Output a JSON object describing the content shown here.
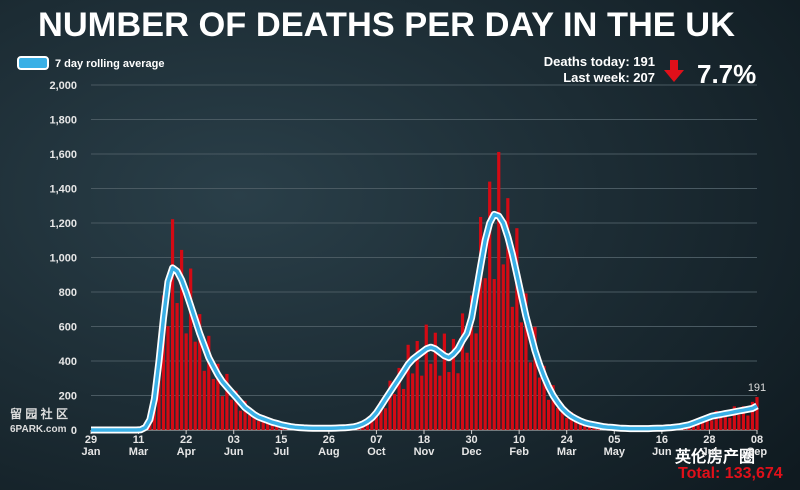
{
  "chart_data": {
    "type": "bar",
    "title": "NUMBER OF DEATHS PER DAY IN THE UK",
    "stats": {
      "today": "Deaths today: 191",
      "last_week": "Last week: 207",
      "change": "7.7%",
      "total": "Total: 133,674"
    },
    "watermarks": [
      "留 园 社 区",
      "6PARK.com",
      "英伦房产圈"
    ],
    "x": [
      0,
      4,
      8,
      12,
      16,
      20,
      24,
      28,
      32,
      36,
      40,
      44,
      48,
      52,
      56,
      60,
      64,
      68,
      72,
      76,
      80,
      84,
      88,
      92,
      96,
      100,
      104,
      108,
      112,
      116,
      120,
      124,
      128,
      132,
      136,
      140,
      144,
      148,
      152,
      156,
      160,
      164,
      168,
      172,
      176,
      180,
      184,
      188,
      192,
      196,
      200,
      204,
      208,
      212,
      216,
      220,
      224,
      228,
      232,
      236,
      240,
      244,
      248,
      252,
      256,
      260,
      264,
      268,
      272,
      276,
      280,
      284,
      288,
      292,
      296,
      300,
      304,
      308,
      312,
      316,
      320,
      324,
      328,
      332,
      336,
      340,
      344,
      348,
      352,
      356,
      360,
      364,
      368,
      372,
      376,
      380,
      384,
      388,
      392,
      396,
      400,
      404,
      408,
      412,
      416,
      420,
      424,
      428,
      432,
      436,
      440,
      444,
      448,
      452,
      456,
      460,
      464,
      468,
      472,
      476,
      480,
      484,
      488,
      492,
      496,
      500,
      504,
      508,
      512,
      516,
      520,
      524,
      528,
      532,
      536,
      540,
      544,
      548,
      552,
      556,
      560,
      564,
      568,
      572,
      576,
      580,
      584,
      588
    ],
    "series": [
      {
        "type": "bar",
        "color": "#d40a14",
        "values": [
          0,
          0,
          0,
          0,
          0,
          0,
          0,
          0,
          0,
          0,
          0,
          2,
          18,
          42,
          234,
          320,
          780,
          602,
          1222,
          736,
          1044,
          560,
          936,
          512,
          672,
          343,
          546,
          296,
          384,
          196,
          325,
          176,
          228,
          112,
          169,
          88,
          108,
          52,
          85,
          44,
          54,
          27,
          39,
          20,
          24,
          11,
          18,
          10,
          13,
          7,
          13,
          8,
          12,
          7,
          14,
          10,
          16,
          11,
          23,
          20,
          42,
          35,
          91,
          80,
          168,
          126,
          286,
          208,
          360,
          238,
          494,
          328,
          516,
          315,
          611,
          384,
          564,
          315,
          559,
          336,
          528,
          329,
          676,
          448,
          780,
          560,
          1235,
          880,
          1440,
          875,
          1612,
          960,
          1344,
          714,
          1170,
          624,
          792,
          392,
          598,
          304,
          372,
          175,
          260,
          128,
          150,
          70,
          104,
          52,
          62,
          29,
          46,
          24,
          30,
          14,
          22,
          12,
          14,
          7,
          12,
          6,
          10,
          6,
          10,
          6,
          11,
          7,
          13,
          10,
          17,
          12,
          26,
          20,
          36,
          28,
          65,
          48,
          84,
          56,
          111,
          72,
          114,
          70,
          137,
          88,
          138,
          84,
          163,
          191
        ]
      },
      {
        "type": "line",
        "name": "7 day rolling average",
        "color": "#3ab0e6",
        "values": [
          0,
          0,
          0,
          0,
          0,
          0,
          0,
          0,
          0,
          0,
          0,
          2,
          15,
          60,
          180,
          400,
          650,
          860,
          940,
          920,
          870,
          800,
          720,
          640,
          560,
          490,
          420,
          370,
          320,
          280,
          250,
          220,
          190,
          160,
          130,
          110,
          90,
          75,
          65,
          55,
          45,
          38,
          30,
          25,
          20,
          16,
          14,
          12,
          11,
          10,
          10,
          10,
          10,
          10,
          11,
          12,
          13,
          15,
          18,
          25,
          35,
          50,
          70,
          100,
          140,
          180,
          220,
          260,
          300,
          340,
          380,
          410,
          430,
          450,
          470,
          480,
          470,
          450,
          430,
          420,
          440,
          470,
          520,
          560,
          650,
          800,
          950,
          1100,
          1200,
          1250,
          1240,
          1200,
          1120,
          1020,
          900,
          780,
          660,
          560,
          460,
          380,
          310,
          250,
          200,
          160,
          125,
          100,
          80,
          65,
          52,
          42,
          35,
          30,
          25,
          20,
          17,
          15,
          12,
          10,
          9,
          8,
          8,
          8,
          8,
          8,
          9,
          10,
          10,
          12,
          14,
          17,
          20,
          25,
          30,
          40,
          50,
          60,
          70,
          80,
          85,
          90,
          95,
          100,
          105,
          110,
          115,
          120,
          125,
          140
        ]
      }
    ],
    "xlim": [
      0,
      588
    ],
    "xticks": [
      {
        "value": 0,
        "label": "29"
      },
      {
        "value": 42,
        "label": "11"
      },
      {
        "value": 84,
        "label": "22"
      },
      {
        "value": 126,
        "label": "03"
      },
      {
        "value": 168,
        "label": "15"
      },
      {
        "value": 210,
        "label": "26"
      },
      {
        "value": 252,
        "label": "07"
      },
      {
        "value": 294,
        "label": "18"
      },
      {
        "value": 336,
        "label": "30"
      },
      {
        "value": 378,
        "label": "10"
      },
      {
        "value": 420,
        "label": "24"
      },
      {
        "value": 462,
        "label": "05"
      },
      {
        "value": 504,
        "label": "16"
      },
      {
        "value": 546,
        "label": "28"
      },
      {
        "value": 588,
        "label": "08"
      }
    ],
    "xtick_months": [
      "Jan",
      "Mar",
      "Apr",
      "Jun",
      "Jul",
      "Aug",
      "Oct",
      "Nov",
      "Dec",
      "Feb",
      "Mar",
      "May",
      "Jun",
      "Jul",
      "Sep"
    ],
    "ylim": [
      0,
      2000
    ],
    "yticks": [
      0,
      200,
      400,
      600,
      800,
      {
        "value": 1000,
        "label": "1,000"
      },
      {
        "value": 1200,
        "label": "1,200"
      },
      {
        "value": 1400,
        "label": "1,400"
      },
      {
        "value": 1600,
        "label": "1,600"
      },
      {
        "value": 1800,
        "label": "1,800"
      },
      {
        "value": 2000,
        "label": "2,000"
      }
    ],
    "grid": true
  }
}
